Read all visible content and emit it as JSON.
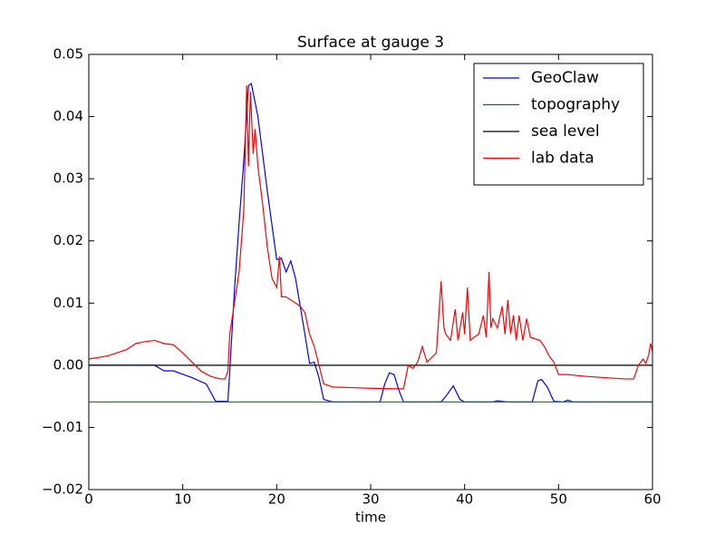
{
  "chart_data": {
    "type": "line",
    "title": "Surface at gauge 3",
    "x_label": "time",
    "xlim": [
      0,
      60
    ],
    "xticks": [
      0,
      10,
      20,
      30,
      40,
      50,
      60
    ],
    "ylim": [
      -0.02,
      0.05
    ],
    "yticks": [
      {
        "value": -0.02,
        "label": "−0.02"
      },
      {
        "value": -0.01,
        "label": "−0.01"
      },
      {
        "value": 0,
        "label": "0.00"
      },
      0.01,
      0.02,
      0.03,
      0.04,
      0.05
    ],
    "legend": "upper right",
    "series": [
      {
        "name": "GeoClaw",
        "color": "#0000ff",
        "x": [
          0,
          7,
          8,
          9,
          11,
          12.5,
          13.5,
          14.8,
          15,
          15.5,
          16,
          16.5,
          17,
          17.3,
          18,
          19,
          20,
          20.5,
          21,
          21.5,
          22,
          23,
          23.5,
          24,
          24.5,
          25,
          26,
          31,
          31.5,
          32,
          32.5,
          33,
          33.5,
          37.5,
          38,
          38.8,
          39.5,
          40,
          43,
          43.5,
          44.5,
          47.2,
          47.8,
          48.2,
          48.8,
          49.5,
          50.5,
          51,
          51.5,
          60
        ],
        "values": [
          0,
          0,
          -0.0009,
          -0.0009,
          -0.002,
          -0.003,
          -0.0058,
          -0.0058,
          -0.001,
          0.012,
          0.023,
          0.033,
          0.045,
          0.0453,
          0.04,
          0.028,
          0.017,
          0.0172,
          0.015,
          0.0168,
          0.014,
          0.005,
          0.0003,
          0.0005,
          -0.002,
          -0.0055,
          -0.0059,
          -0.0059,
          -0.003,
          -0.0012,
          -0.0015,
          -0.004,
          -0.0059,
          -0.0059,
          -0.005,
          -0.0033,
          -0.0055,
          -0.0059,
          -0.0059,
          -0.0057,
          -0.0059,
          -0.0059,
          -0.0025,
          -0.0023,
          -0.0035,
          -0.0058,
          -0.0059,
          -0.0056,
          -0.0059,
          -0.0059
        ]
      },
      {
        "name": "topography",
        "color": "#008000",
        "x": [
          0,
          60
        ],
        "values": [
          -0.0059,
          -0.0059
        ]
      },
      {
        "name": "sea level",
        "color": "#000000",
        "x": [
          0,
          60
        ],
        "values": [
          0,
          0
        ]
      },
      {
        "name": "lab data",
        "color": "#ff0000",
        "x": [
          0,
          2,
          4,
          5,
          6,
          7,
          8,
          9,
          10,
          11,
          12,
          13,
          14,
          14.5,
          14.8,
          15,
          15.5,
          16,
          16.5,
          16.8,
          17,
          17.2,
          17.5,
          17.7,
          18,
          18.5,
          19,
          19.5,
          20,
          20.3,
          20.5,
          21,
          22,
          22.5,
          23,
          23.5,
          24,
          24.5,
          25,
          26,
          30,
          33,
          33.5,
          34,
          34.5,
          35,
          35.5,
          36,
          37,
          37.5,
          37.8,
          38,
          38.5,
          39,
          39.3,
          39.8,
          40,
          40.3,
          40.6,
          41,
          41.5,
          42,
          42.3,
          42.6,
          42.8,
          43,
          43.5,
          44,
          44.3,
          44.6,
          44.9,
          45.2,
          45.5,
          45.8,
          46.2,
          46.6,
          47,
          48,
          48.5,
          49,
          49.5,
          50,
          51,
          53,
          55,
          57,
          58,
          58.5,
          59,
          59.3,
          59.6,
          59.8,
          60
        ],
        "values": [
          0.001,
          0.0015,
          0.0025,
          0.0035,
          0.0038,
          0.004,
          0.0035,
          0.0033,
          0.002,
          0.0005,
          -0.001,
          -0.0018,
          -0.0022,
          -0.0022,
          -0.001,
          0.005,
          0.01,
          0.015,
          0.025,
          0.045,
          0.032,
          0.044,
          0.034,
          0.038,
          0.032,
          0.026,
          0.019,
          0.014,
          0.0125,
          0.0175,
          0.011,
          0.011,
          0.01,
          0.0095,
          0.0085,
          0.005,
          0.003,
          0.0,
          -0.003,
          -0.0035,
          -0.0037,
          -0.0038,
          -0.0038,
          0.0,
          -0.0005,
          0.0005,
          0.003,
          0.0005,
          0.002,
          0.0135,
          0.006,
          0.005,
          0.004,
          0.009,
          0.004,
          0.0085,
          0.005,
          0.0125,
          0.004,
          0.0045,
          0.005,
          0.008,
          0.0045,
          0.015,
          0.006,
          0.0075,
          0.006,
          0.0095,
          0.005,
          0.0105,
          0.005,
          0.008,
          0.004,
          0.008,
          0.004,
          0.0075,
          0.0045,
          0.004,
          0.003,
          0.0015,
          0.0005,
          -0.0015,
          -0.0015,
          -0.0018,
          -0.002,
          -0.0022,
          -0.0022,
          0.0,
          0.001,
          0.0003,
          0.0017,
          0.0035,
          0.0022
        ]
      }
    ]
  }
}
